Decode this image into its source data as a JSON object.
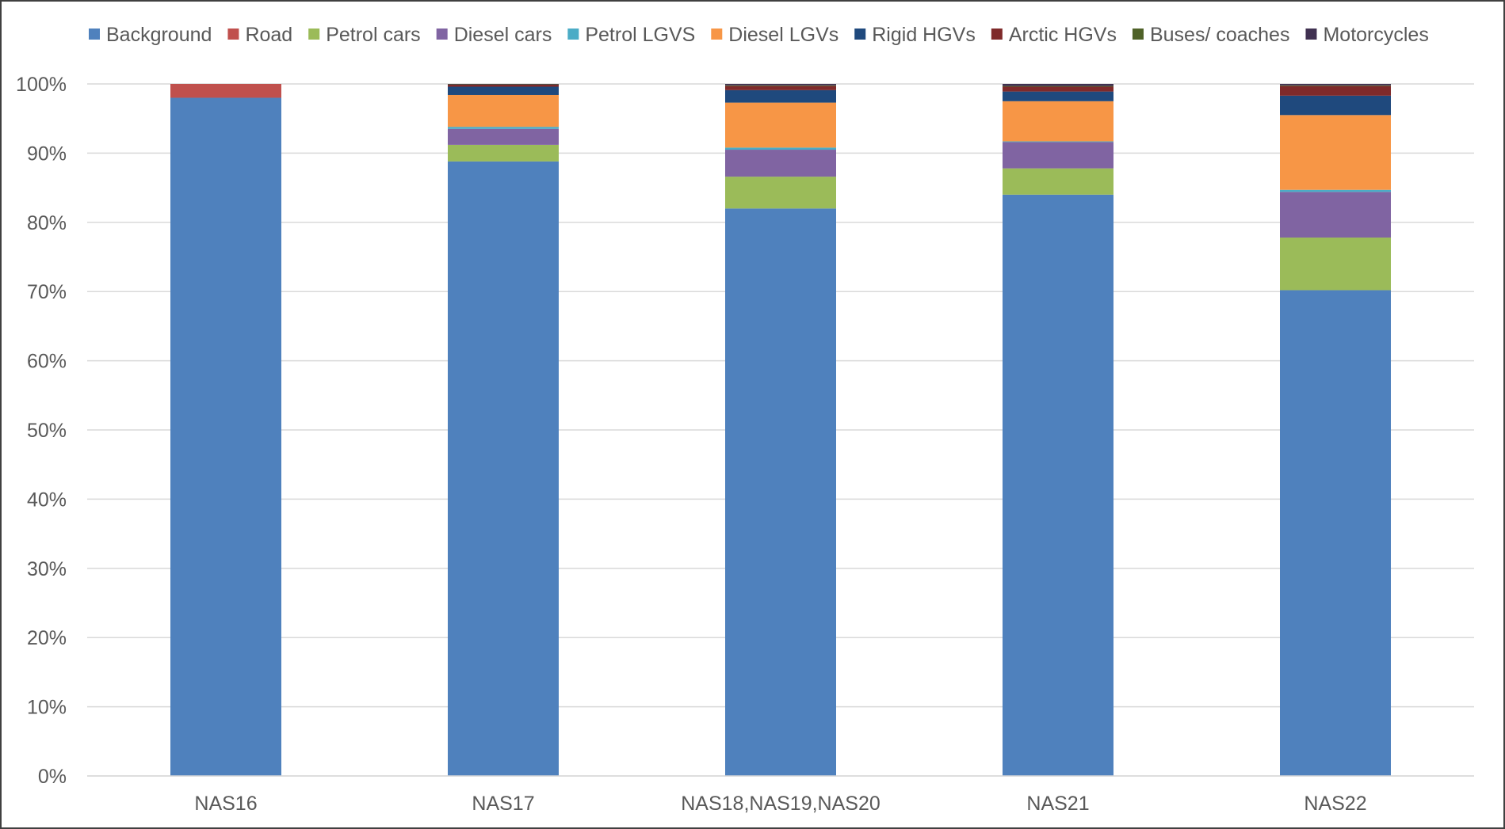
{
  "chart_data": {
    "type": "bar",
    "stacked": true,
    "normalized": true,
    "categories": [
      "NAS16",
      "NAS17",
      "NAS18,NAS19,NAS20",
      "NAS21",
      "NAS22"
    ],
    "series": [
      {
        "name": "Background",
        "color": "#4F81BD",
        "values": [
          98.0,
          88.8,
          82.0,
          84.0,
          70.2
        ]
      },
      {
        "name": "Road",
        "color": "#C0504D",
        "values": [
          2.0,
          0.0,
          0.0,
          0.0,
          0.0
        ]
      },
      {
        "name": "Petrol cars",
        "color": "#9BBB59",
        "values": [
          0.0,
          2.4,
          4.6,
          3.8,
          7.6
        ]
      },
      {
        "name": "Diesel cars",
        "color": "#8064A2",
        "values": [
          0.0,
          2.3,
          3.9,
          3.8,
          6.6
        ]
      },
      {
        "name": "Petrol LGVS",
        "color": "#4BACC6",
        "values": [
          0.0,
          0.3,
          0.3,
          0.1,
          0.3
        ]
      },
      {
        "name": "Diesel LGVs",
        "color": "#F79646",
        "values": [
          0.0,
          4.6,
          6.5,
          5.8,
          10.8
        ]
      },
      {
        "name": "Rigid HGVs",
        "color": "#1F497D",
        "values": [
          0.0,
          1.2,
          1.8,
          1.4,
          2.8
        ]
      },
      {
        "name": "Arctic HGVs",
        "color": "#7F2A2A",
        "values": [
          0.0,
          0.3,
          0.6,
          0.7,
          1.4
        ]
      },
      {
        "name": "Buses/ coaches",
        "color": "#4F6228",
        "values": [
          0.0,
          0.05,
          0.1,
          0.1,
          0.1
        ]
      },
      {
        "name": "Motorcycles",
        "color": "#403151",
        "values": [
          0.0,
          0.05,
          0.2,
          0.3,
          0.2
        ]
      }
    ],
    "y_ticks": [
      "0%",
      "10%",
      "20%",
      "30%",
      "40%",
      "50%",
      "60%",
      "70%",
      "80%",
      "90%",
      "100%"
    ],
    "ylim": [
      0,
      100
    ],
    "title": "",
    "xlabel": "",
    "ylabel": "",
    "grid": true,
    "legend": "top"
  }
}
